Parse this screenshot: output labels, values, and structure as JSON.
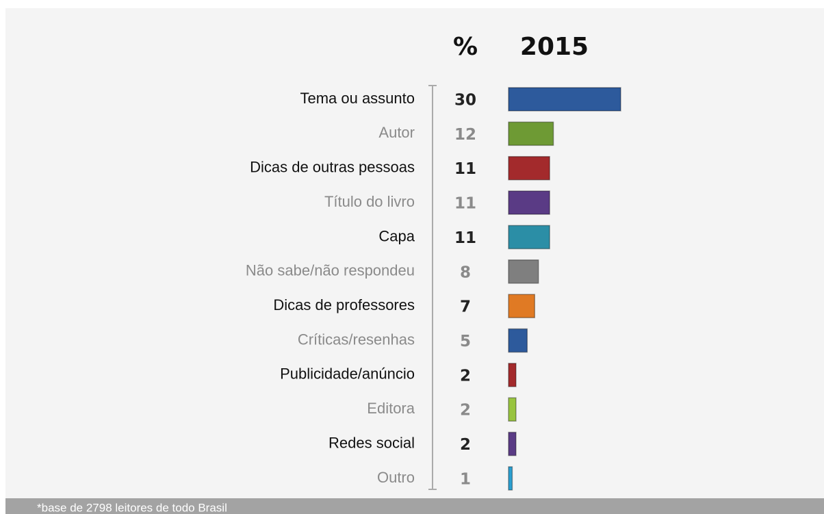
{
  "chart_data": {
    "type": "bar",
    "column_headers": [
      "%",
      "2015"
    ],
    "categories": [
      "Tema ou assunto",
      "Autor",
      "Dicas de outras pessoas",
      "Título do livro",
      "Capa",
      "Não sabe/não respondeu",
      "Dicas de professores",
      "Críticas/resenhas",
      "Publicidade/anúncio",
      "Editora",
      "Redes social",
      "Outro"
    ],
    "values": [
      30,
      12,
      11,
      11,
      11,
      8,
      7,
      5,
      2,
      2,
      2,
      1
    ],
    "colors": [
      "#2d5a9c",
      "#6e9a34",
      "#a32a2c",
      "#5a3b85",
      "#2b8ea6",
      "#7f7f7f",
      "#e07a24",
      "#2d5a9c",
      "#a32a2c",
      "#98c43f",
      "#5a3b85",
      "#2a9fd0"
    ],
    "footnote": "*base de 2798 leitores de todo Brasil"
  }
}
